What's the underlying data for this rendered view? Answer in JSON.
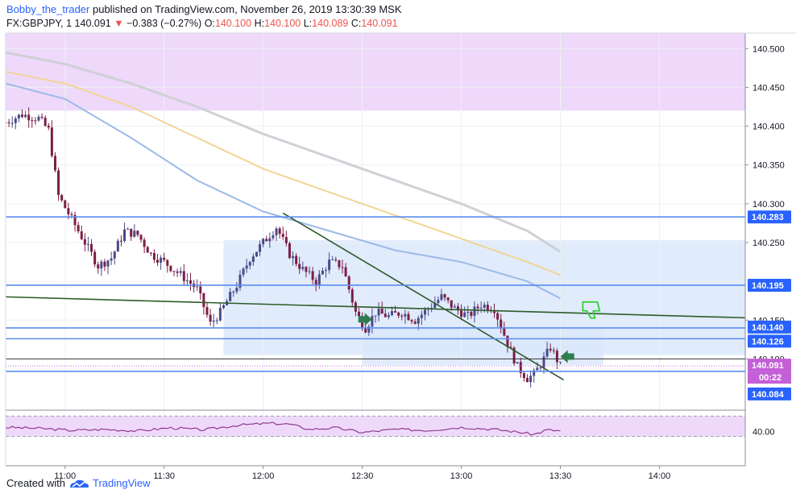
{
  "header": {
    "author": "Bobby_the_trader",
    "published_text": "published on TradingView.com, November 26, 2019 13:30:39 MSK",
    "symbol": "FX:GBPJPY, 1",
    "last": "140.091",
    "change": "−0.383 (−0.27%)",
    "o_label": "O:",
    "o_value": "140.100",
    "h_label": "H:",
    "h_value": "140.100",
    "l_label": "L:",
    "l_value": "140.089",
    "c_label": "C:",
    "c_value": "140.091"
  },
  "footer": {
    "created_with": "Created with",
    "brand": "TradingView"
  },
  "colors": {
    "up": "#4a4a8a",
    "down": "#7b1f45",
    "blue_line": "#5b8def",
    "trend": "#2e5b2a",
    "zone_purple": "#efd9fb",
    "zone_blue": "#dae7fb",
    "ma_gray": "#d0d0d6",
    "ma_orange": "#f2d496",
    "ma_blue": "#9cbbe8",
    "rsi": "#8e3c8e",
    "tag_blue": "#2962ff",
    "tag_purple": "#c35fd7",
    "arrow_green": "#2e7d4f",
    "thumb_green": "#2fd12f"
  },
  "chart_data": {
    "type": "candlestick",
    "symbol": "FX:GBPJPY",
    "timeframe": "1",
    "ylim": [
      140.035,
      140.52
    ],
    "y_ticks": [
      "140.500",
      "140.450",
      "140.400",
      "140.350",
      "140.300",
      "140.250",
      "140.150",
      "140.100"
    ],
    "x_range": [
      "10:42",
      "14:26"
    ],
    "x_ticks": [
      "11:00",
      "11:30",
      "12:00",
      "12:30",
      "13:00",
      "13:30",
      "14:00"
    ],
    "close_path": [
      [
        "10:42",
        140.405
      ],
      [
        "10:47",
        140.415
      ],
      [
        "10:52",
        140.41
      ],
      [
        "10:55",
        140.395
      ],
      [
        "10:58",
        140.31
      ],
      [
        "11:02",
        140.28
      ],
      [
        "11:06",
        140.25
      ],
      [
        "11:10",
        140.22
      ],
      [
        "11:14",
        140.23
      ],
      [
        "11:18",
        140.265
      ],
      [
        "11:22",
        140.26
      ],
      [
        "11:26",
        140.235
      ],
      [
        "11:30",
        140.225
      ],
      [
        "11:36",
        140.205
      ],
      [
        "11:40",
        140.19
      ],
      [
        "11:44",
        140.145
      ],
      [
        "11:47",
        140.16
      ],
      [
        "11:52",
        140.195
      ],
      [
        "11:56",
        140.23
      ],
      [
        "12:01",
        140.255
      ],
      [
        "12:04",
        140.27
      ],
      [
        "12:08",
        140.235
      ],
      [
        "12:12",
        140.215
      ],
      [
        "12:16",
        140.2
      ],
      [
        "12:20",
        140.225
      ],
      [
        "12:24",
        140.22
      ],
      [
        "12:28",
        140.16
      ],
      [
        "12:31",
        140.14
      ],
      [
        "12:34",
        140.16
      ],
      [
        "12:38",
        140.155
      ],
      [
        "12:42",
        140.16
      ],
      [
        "12:46",
        140.15
      ],
      [
        "12:50",
        140.165
      ],
      [
        "12:54",
        140.18
      ],
      [
        "12:58",
        140.165
      ],
      [
        "13:02",
        140.155
      ],
      [
        "13:06",
        140.17
      ],
      [
        "13:10",
        140.165
      ],
      [
        "13:14",
        140.12
      ],
      [
        "13:17",
        140.09
      ],
      [
        "13:20",
        140.075
      ],
      [
        "13:22",
        140.08
      ],
      [
        "13:25",
        140.1
      ],
      [
        "13:27",
        140.115
      ],
      [
        "13:30",
        140.091
      ]
    ],
    "horizontal_levels": [
      {
        "price": 140.283,
        "label": "140.283"
      },
      {
        "price": 140.195,
        "label": "140.195"
      },
      {
        "price": 140.14,
        "label": "140.140"
      },
      {
        "price": 140.126,
        "label": "140.126"
      },
      {
        "price": 140.084,
        "label": "140.084"
      }
    ],
    "price_tag": {
      "price": 140.091,
      "label": "140.091",
      "countdown": "00:22"
    },
    "zones": [
      {
        "from_time": "10:42",
        "to_time": "14:26",
        "top": 140.52,
        "bottom": 140.42,
        "color": "purple"
      },
      {
        "from_time": "11:48",
        "to_time": "14:26",
        "top": 140.253,
        "bottom": 140.105,
        "color": "blue"
      },
      {
        "from_time": "12:30",
        "to_time": "13:43",
        "top": 140.139,
        "bottom": 140.092,
        "color": "blue"
      }
    ],
    "trendlines": [
      {
        "from": [
          "10:42",
          140.18
        ],
        "to": [
          "14:26",
          140.153
        ]
      },
      {
        "from": [
          "12:06",
          140.288
        ],
        "to": [
          "13:31",
          140.073
        ]
      }
    ],
    "moving_averages": [
      {
        "color": "gray",
        "points": [
          [
            "10:42",
            140.495
          ],
          [
            "11:00",
            140.48
          ],
          [
            "11:20",
            140.455
          ],
          [
            "11:40",
            140.425
          ],
          [
            "12:00",
            140.39
          ],
          [
            "12:20",
            140.36
          ],
          [
            "12:40",
            140.33
          ],
          [
            "13:00",
            140.3
          ],
          [
            "13:20",
            140.265
          ],
          [
            "13:30",
            140.238
          ]
        ]
      },
      {
        "color": "orange",
        "points": [
          [
            "10:42",
            140.47
          ],
          [
            "11:00",
            140.455
          ],
          [
            "11:20",
            140.425
          ],
          [
            "11:40",
            140.385
          ],
          [
            "12:00",
            140.345
          ],
          [
            "12:20",
            140.315
          ],
          [
            "12:40",
            140.285
          ],
          [
            "13:00",
            140.255
          ],
          [
            "13:20",
            140.225
          ],
          [
            "13:30",
            140.208
          ]
        ]
      },
      {
        "color": "blue",
        "points": [
          [
            "10:42",
            140.455
          ],
          [
            "11:00",
            140.435
          ],
          [
            "11:20",
            140.385
          ],
          [
            "11:40",
            140.33
          ],
          [
            "12:00",
            140.29
          ],
          [
            "12:20",
            140.265
          ],
          [
            "12:40",
            140.24
          ],
          [
            "13:00",
            140.225
          ],
          [
            "13:20",
            140.2
          ],
          [
            "13:30",
            140.178
          ]
        ]
      }
    ],
    "rsi": {
      "ticks": [
        "40.00"
      ],
      "range": [
        20,
        80
      ],
      "band": [
        30,
        70
      ],
      "values": [
        [
          "10:42",
          48
        ],
        [
          "10:52",
          46
        ],
        [
          "11:02",
          42
        ],
        [
          "11:12",
          44
        ],
        [
          "11:22",
          41
        ],
        [
          "11:32",
          47
        ],
        [
          "11:42",
          43
        ],
        [
          "11:52",
          52
        ],
        [
          "12:02",
          56
        ],
        [
          "12:08",
          54
        ],
        [
          "12:14",
          44
        ],
        [
          "12:22",
          47
        ],
        [
          "12:30",
          38
        ],
        [
          "12:40",
          44
        ],
        [
          "12:50",
          42
        ],
        [
          "13:00",
          48
        ],
        [
          "13:10",
          44
        ],
        [
          "13:18",
          38
        ],
        [
          "13:22",
          34
        ],
        [
          "13:26",
          43
        ],
        [
          "13:30",
          41
        ]
      ]
    }
  }
}
